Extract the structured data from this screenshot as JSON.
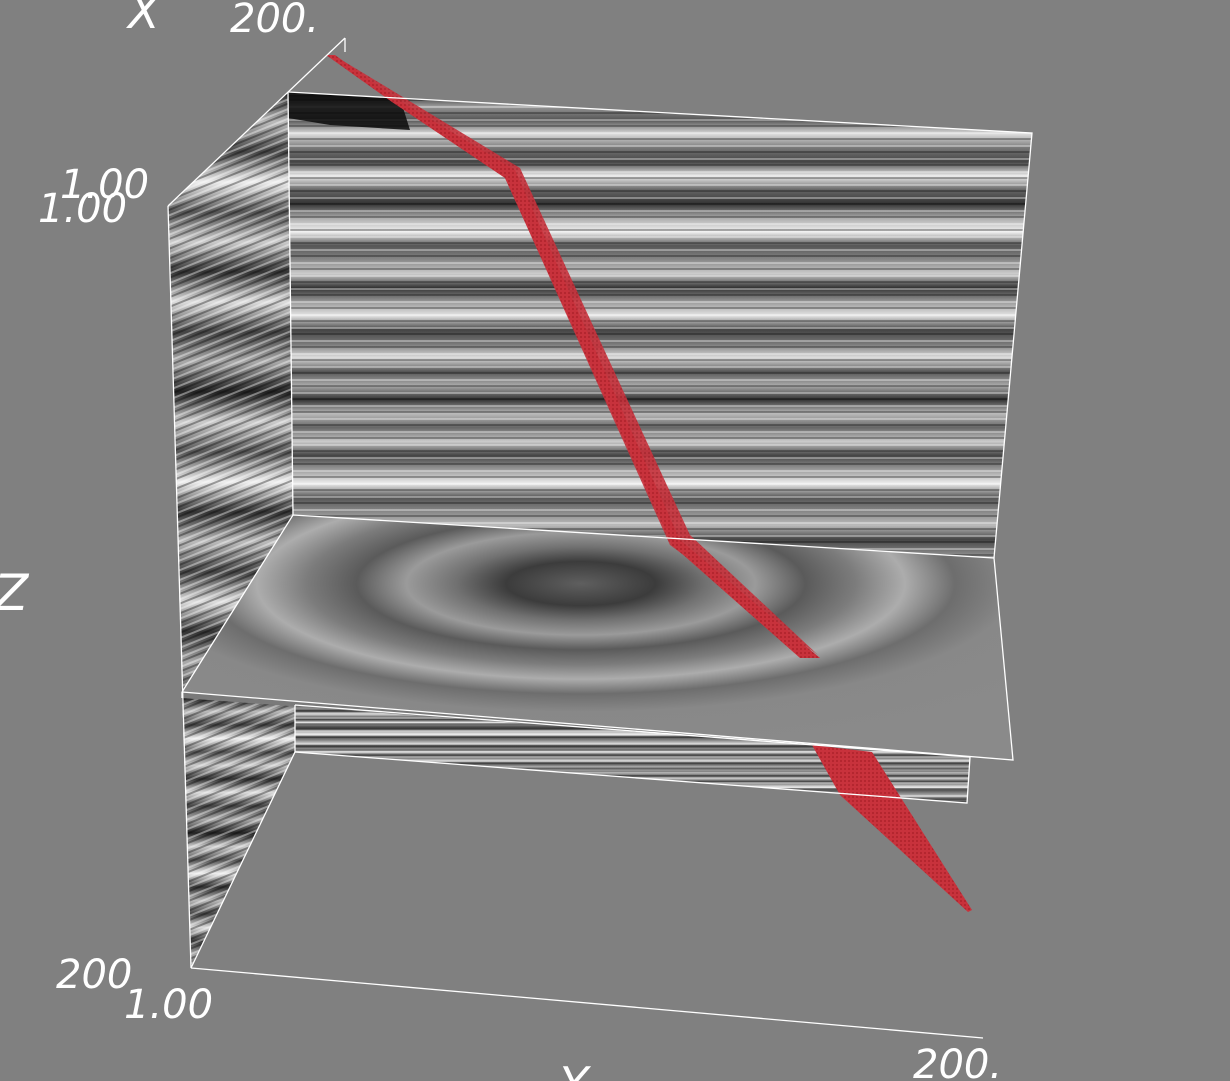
{
  "viewer": {
    "background_color": "#808080",
    "horizon_color": "#c8323c",
    "frame_color": "#ffffff"
  },
  "axes": {
    "x": {
      "name": "X",
      "max_label": "200."
    },
    "y": {
      "name": "Y",
      "min_label": "1.00",
      "max_label": "200."
    },
    "z": {
      "name": "Z",
      "min_label": "1.00",
      "max_label": "200"
    },
    "corner_labels": {
      "top_left_upper": "1.00",
      "top_left_lower": "1.00",
      "bottom_left_lower": "1.00"
    }
  },
  "slices": [
    {
      "name": "vertical-slice-back",
      "content": "seismic amplitude"
    },
    {
      "name": "vertical-slice-left",
      "content": "seismic amplitude"
    },
    {
      "name": "horizontal-slice",
      "content": "seismic amplitude"
    }
  ],
  "horizon": {
    "name": "fault-surface",
    "color": "#c8323c"
  }
}
